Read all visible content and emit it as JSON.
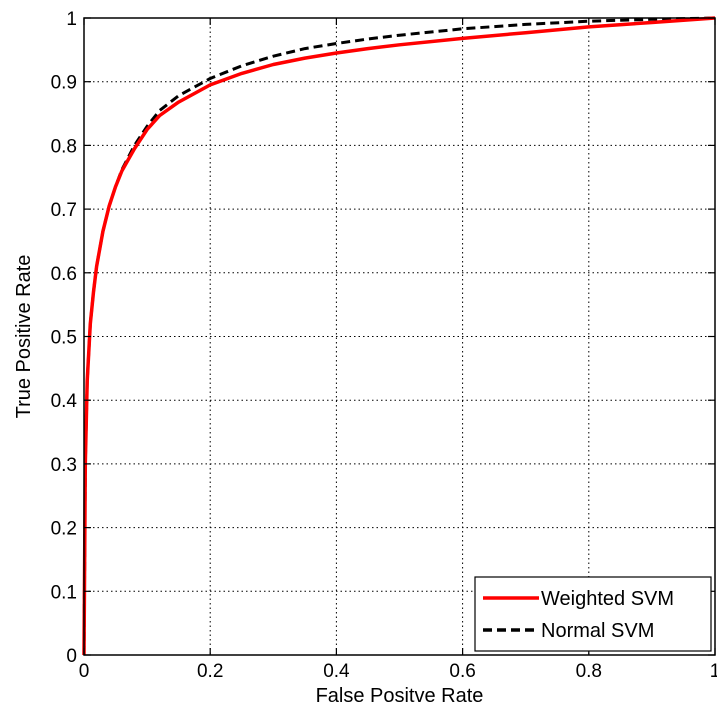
{
  "chart_data": {
    "type": "line",
    "title": "",
    "xlabel": "False Positve Rate",
    "ylabel": "True Positive Rate",
    "xlim": [
      0,
      1
    ],
    "ylim": [
      0,
      1
    ],
    "xticks": [
      "0",
      "0.2",
      "0.4",
      "0.6",
      "0.8",
      "1"
    ],
    "yticks": [
      "0",
      "0.1",
      "0.2",
      "0.3",
      "0.4",
      "0.5",
      "0.6",
      "0.7",
      "0.8",
      "0.9",
      "1"
    ],
    "grid": true,
    "legend_position": "bottom-right",
    "series": [
      {
        "name": "Weighted SVM",
        "color": "#ff0000",
        "style": "solid",
        "x": [
          0,
          0.002,
          0.005,
          0.01,
          0.015,
          0.02,
          0.03,
          0.04,
          0.05,
          0.06,
          0.08,
          0.1,
          0.12,
          0.15,
          0.2,
          0.25,
          0.3,
          0.35,
          0.4,
          0.45,
          0.5,
          0.6,
          0.7,
          0.8,
          0.9,
          1.0
        ],
        "y": [
          0,
          0.3,
          0.43,
          0.52,
          0.57,
          0.61,
          0.665,
          0.705,
          0.735,
          0.76,
          0.795,
          0.825,
          0.847,
          0.868,
          0.895,
          0.913,
          0.927,
          0.937,
          0.945,
          0.952,
          0.958,
          0.968,
          0.977,
          0.986,
          0.993,
          1.0
        ]
      },
      {
        "name": "Normal SVM",
        "color": "#000000",
        "style": "dashed",
        "x": [
          0,
          0.002,
          0.005,
          0.01,
          0.015,
          0.02,
          0.03,
          0.04,
          0.05,
          0.06,
          0.08,
          0.1,
          0.12,
          0.15,
          0.2,
          0.25,
          0.3,
          0.35,
          0.4,
          0.45,
          0.5,
          0.6,
          0.7,
          0.8,
          0.9,
          1.0
        ],
        "y": [
          0,
          0.3,
          0.43,
          0.52,
          0.57,
          0.61,
          0.665,
          0.705,
          0.735,
          0.762,
          0.8,
          0.83,
          0.855,
          0.878,
          0.905,
          0.925,
          0.94,
          0.952,
          0.96,
          0.967,
          0.973,
          0.983,
          0.99,
          0.995,
          0.998,
          1.0
        ]
      }
    ]
  }
}
